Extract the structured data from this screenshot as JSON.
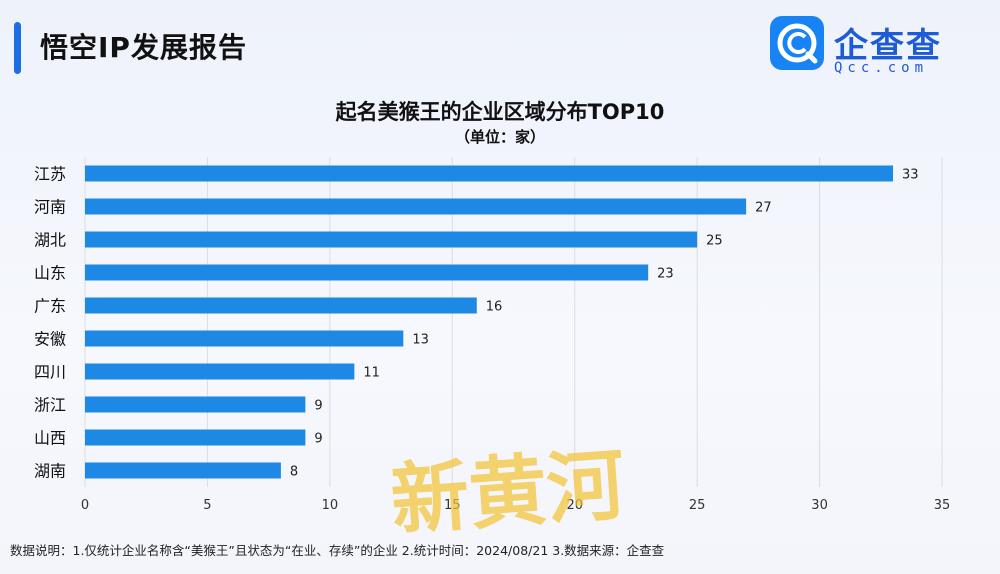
{
  "header": {
    "report_title": "悟空IP发展报告",
    "brand_name": "企查查",
    "brand_domain": "Qcc.com"
  },
  "footnote": "数据说明：1.仅统计企业名称含“美猴王”且状态为“在业、存续”的企业  2.统计时间：2024/08/21  3.数据来源：企查查",
  "watermark_text": "新黄河",
  "colors": {
    "bar": "#1e88e5",
    "accent": "#1b6fe0",
    "brand": "#1e5bd6",
    "watermark": "#f2c230"
  },
  "chart_data": {
    "type": "bar",
    "orientation": "horizontal",
    "title": "起名美猴王的企业区域分布TOP10",
    "subtitle": "（单位：家）",
    "categories": [
      "江苏",
      "河南",
      "湖北",
      "山东",
      "广东",
      "安徽",
      "四川",
      "浙江",
      "山西",
      "湖南"
    ],
    "values": [
      33,
      27,
      25,
      23,
      16,
      13,
      11,
      9,
      9,
      8
    ],
    "xlim": [
      0,
      35
    ],
    "xticks": [
      0,
      5,
      10,
      15,
      20,
      25,
      30,
      35
    ],
    "grid": true,
    "data_labels": true
  }
}
